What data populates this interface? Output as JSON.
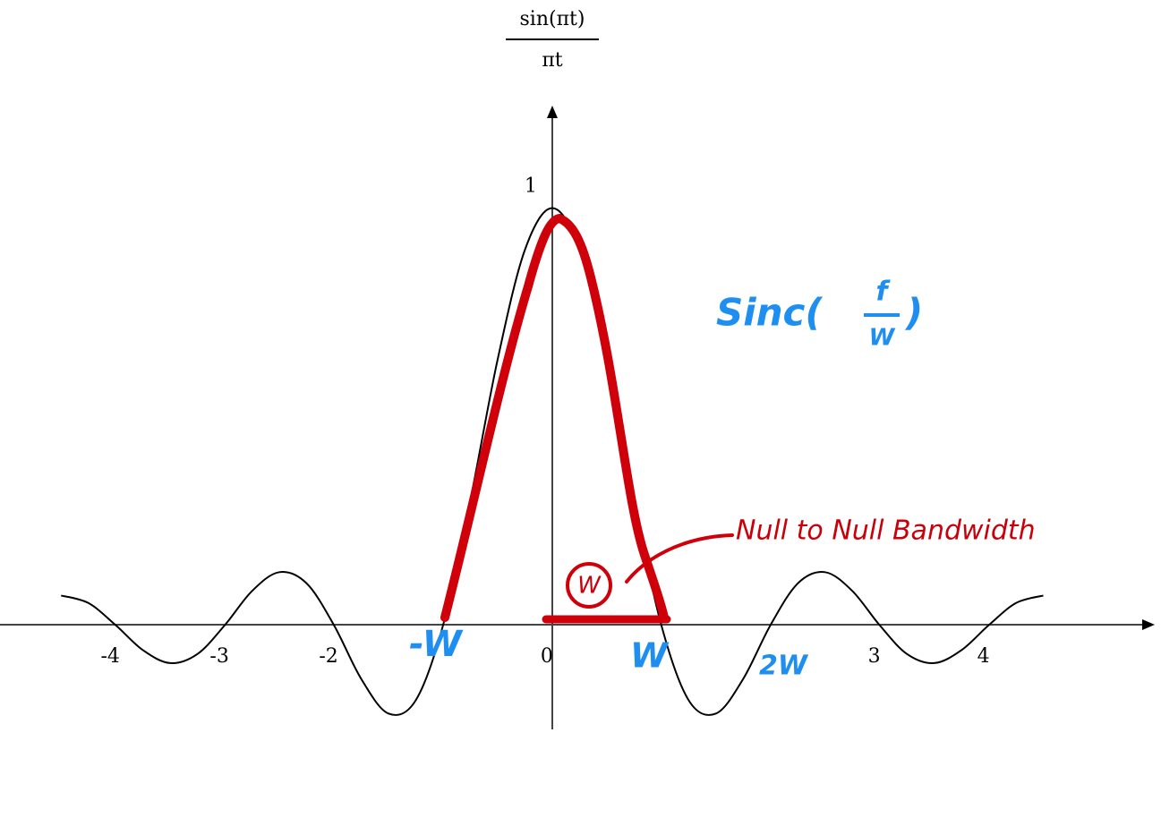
{
  "chart_data": {
    "type": "line",
    "y_label_numerator": "sin(πt)",
    "y_label_denominator": "πt",
    "x": [
      -4.5,
      -4.25,
      -4,
      -3.75,
      -3.5,
      -3.25,
      -3,
      -2.75,
      -2.5,
      -2.25,
      -2,
      -1.75,
      -1.5,
      -1.25,
      -1,
      -0.75,
      -0.5,
      -0.25,
      0,
      0.25,
      0.5,
      0.75,
      1,
      1.25,
      1.5,
      1.75,
      2,
      2.25,
      2.5,
      2.75,
      3,
      3.25,
      3.5,
      3.75,
      4,
      4.25,
      4.5
    ],
    "series": [
      {
        "color": "#000000",
        "values": [
          0.071,
          0.053,
          0,
          -0.06,
          -0.091,
          -0.069,
          0,
          0.082,
          0.127,
          0.1,
          0,
          -0.129,
          -0.212,
          -0.18,
          0,
          0.3,
          0.637,
          0.9,
          1,
          0.9,
          0.637,
          0.3,
          0,
          -0.18,
          -0.212,
          -0.129,
          0,
          0.1,
          0.127,
          0.082,
          0,
          -0.069,
          -0.091,
          -0.06,
          0,
          0.053,
          0.071
        ]
      }
    ],
    "xlim": [
      -5.06,
      5.48
    ],
    "ylim": [
      -0.25,
      1.25
    ],
    "xticks": [
      -4,
      -3,
      -2,
      0,
      3,
      4
    ],
    "yticks": [
      1
    ],
    "annotations": {
      "minus_w": "-W",
      "w": "W",
      "two_w": "2W",
      "circled_w": "W",
      "sinc_prefix": "Sinc(",
      "sinc_numerator": "f",
      "sinc_denominator": "W",
      "sinc_suffix": ")",
      "null_label": "Null to Null Bandwidth"
    }
  }
}
